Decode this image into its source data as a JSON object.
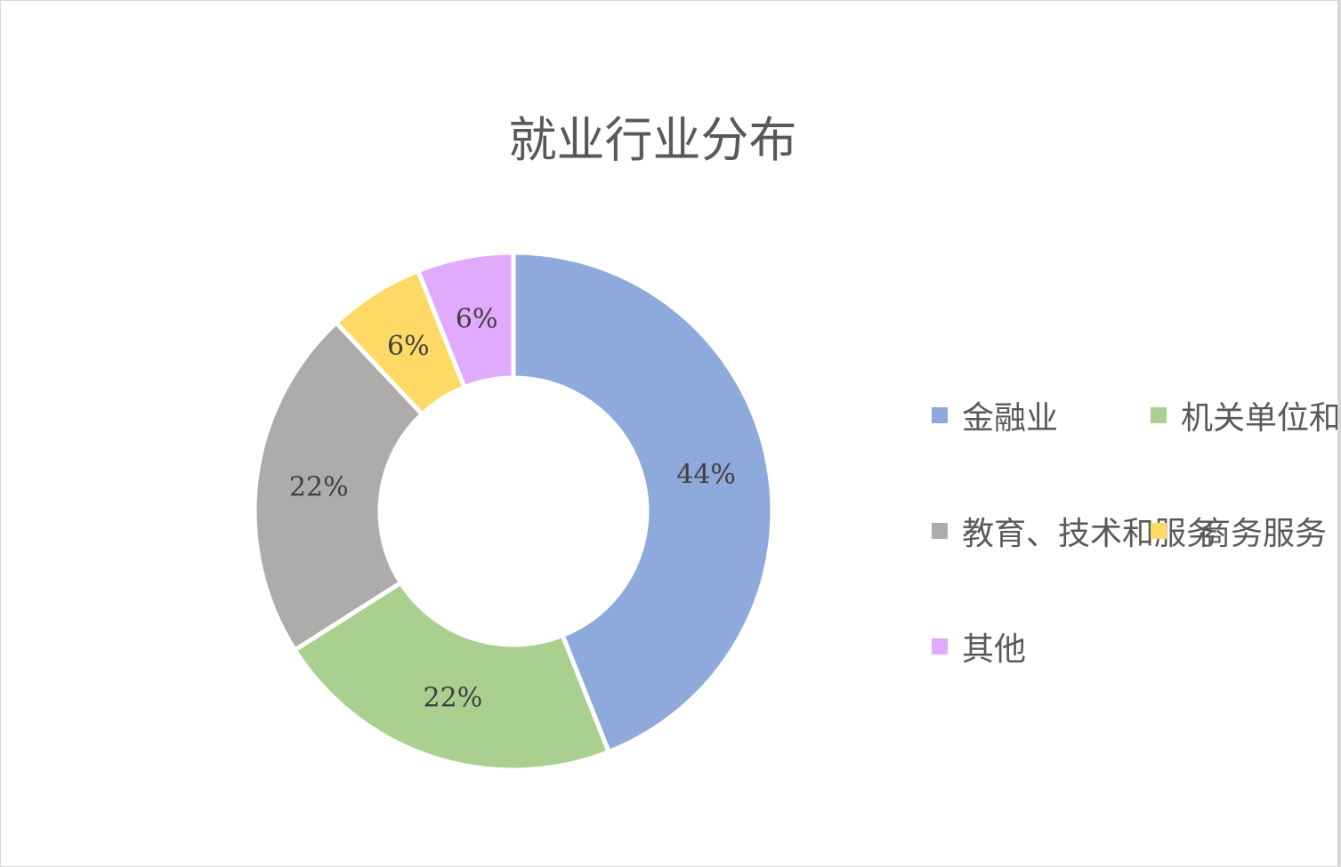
{
  "chart_data": {
    "type": "pie",
    "variant": "donut",
    "title": "就业行业分布",
    "categories": [
      "金融业",
      "机关单位和",
      "教育、技术和服务",
      "商务服务",
      "其他"
    ],
    "values": [
      44,
      22,
      22,
      6,
      6
    ],
    "data_labels": [
      "44%",
      "22%",
      "22%",
      "6%",
      "6%"
    ],
    "colors": [
      "#8EA9DB",
      "#A9D08E",
      "#ADACAA",
      "#FFD966",
      "#E2AAFD"
    ],
    "legend_placement": "right"
  }
}
